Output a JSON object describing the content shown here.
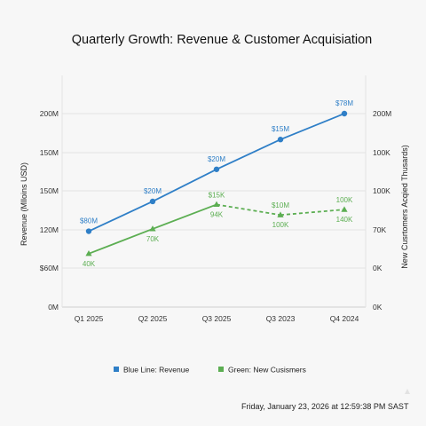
{
  "chart_data": {
    "type": "line",
    "title": "Quarterly Growth: Revenue & Customer Acquisiation",
    "ylabel": "Revenue (Mlloins USD)",
    "y2label": "New Cusrtomers Acqied Thusards)",
    "categories": [
      "Q1 2025",
      "Q2 2025",
      "Q3 2025",
      "Q3 2023",
      "Q4 2024"
    ],
    "y_ticks": [
      "0M",
      "$60M",
      "120M",
      "150M",
      "150M",
      "200M"
    ],
    "y2_ticks": [
      "0K",
      "0K",
      "70K",
      "100K",
      "100K",
      "200M"
    ],
    "ylim": [
      0,
      5
    ],
    "grid": true,
    "legend_position": "bottom",
    "series": [
      {
        "name": "Blue Line: Revenue",
        "axis": "left",
        "color": "#2f7fc7",
        "marker": "circle",
        "line_style": "solid",
        "values": [
          1.96,
          2.73,
          3.56,
          4.33,
          5.0
        ],
        "labels": [
          "$80M",
          "$20M",
          "$20M",
          "$15M",
          "$78M"
        ]
      },
      {
        "name": "Green: New Cusismers",
        "axis": "left",
        "color": "#5cae52",
        "marker": "triangle",
        "values": [
          1.38,
          2.02,
          2.65,
          2.38,
          2.52
        ],
        "line_styles": [
          "solid",
          "solid",
          "dashed",
          "dashed"
        ],
        "labels_above": [
          "",
          "",
          "$15K",
          "$10M",
          "100K"
        ],
        "labels_below": [
          "40K",
          "70K",
          "94K",
          "100K",
          "140K"
        ]
      }
    ]
  },
  "footer": {
    "timestamp": "Friday, January 23, 2026 at 12:59:38 PM SAST"
  }
}
